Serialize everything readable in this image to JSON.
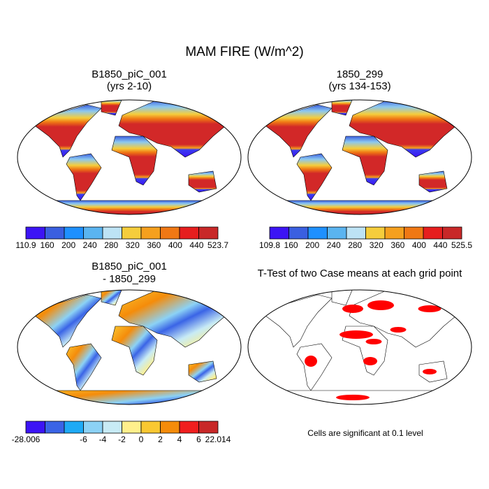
{
  "title": "MAM FIRE (W/m^2)",
  "panels": [
    {
      "title": [
        "B1850_piC_001",
        "(yrs 2-10)"
      ],
      "colorbar": {
        "colors": [
          "#3c14f5",
          "#3a5fe0",
          "#1e90ff",
          "#5ab4f0",
          "#bde3f5",
          "#f5cd3c",
          "#f5a01e",
          "#f07814",
          "#e61e1e",
          "#c82828"
        ],
        "labels": [
          "110.9",
          "160",
          "200",
          "240",
          "280",
          "320",
          "360",
          "400",
          "440",
          "523.7"
        ]
      }
    },
    {
      "title": [
        "1850_299",
        "(yrs 134-153)"
      ],
      "colorbar": {
        "colors": [
          "#3c14f5",
          "#3a5fe0",
          "#1e90ff",
          "#5ab4f0",
          "#bde3f5",
          "#f5cd3c",
          "#f5a01e",
          "#f07814",
          "#e61e1e",
          "#c82828"
        ],
        "labels": [
          "109.8",
          "160",
          "200",
          "240",
          "280",
          "320",
          "360",
          "400",
          "440",
          "525.5"
        ]
      }
    },
    {
      "title": [
        "B1850_piC_001",
        "- 1850_299"
      ],
      "colorbar": {
        "colors": [
          "#3c14f5",
          "#3a64e6",
          "#1eaaf5",
          "#8cd2f5",
          "#c8ebf5",
          "#fff08c",
          "#fac832",
          "#f58c0a",
          "#f01e1e",
          "#c82828"
        ],
        "labels": [
          "-28.006",
          null,
          null,
          "-6",
          "-4",
          "-2",
          "0",
          "2",
          "4",
          "6",
          "22.014"
        ]
      }
    },
    {
      "title": [
        "T-Test of two Case means at each grid point"
      ],
      "note": "Cells are significant at 0.1 level"
    }
  ]
}
